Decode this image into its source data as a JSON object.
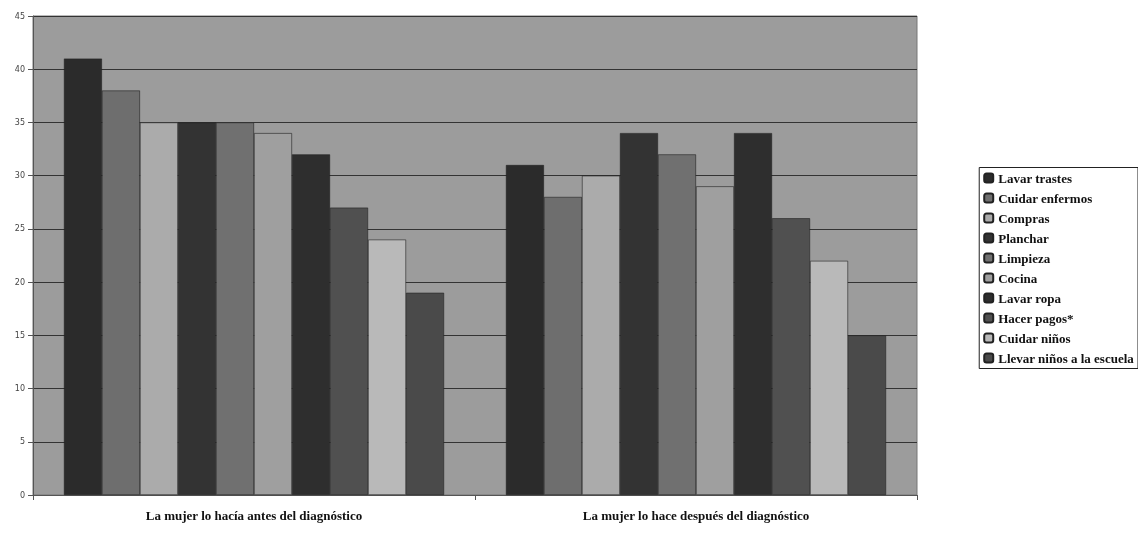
{
  "chart_data": {
    "type": "bar",
    "categories": [
      "La mujer lo hacía antes del diagnóstico",
      "La mujer lo hace después del diagnóstico"
    ],
    "series": [
      {
        "name": "Lavar trastes",
        "color": "#2b2b2b",
        "values": [
          41,
          31
        ]
      },
      {
        "name": "Cuidar enfermos",
        "color": "#6e6e6e",
        "values": [
          38,
          28
        ]
      },
      {
        "name": "Compras",
        "color": "#ababab",
        "values": [
          35,
          30
        ]
      },
      {
        "name": "Planchar",
        "color": "#333333",
        "values": [
          35,
          34
        ]
      },
      {
        "name": "Limpieza",
        "color": "#707070",
        "values": [
          35,
          32
        ]
      },
      {
        "name": "Cocina",
        "color": "#9f9f9f",
        "values": [
          34,
          29
        ]
      },
      {
        "name": "Lavar ropa",
        "color": "#2e2e2e",
        "values": [
          32,
          34
        ]
      },
      {
        "name": "Hacer pagos*",
        "color": "#505050",
        "values": [
          27,
          26
        ]
      },
      {
        "name": "Cuidar niños",
        "color": "#b9b9b9",
        "values": [
          24,
          22
        ]
      },
      {
        "name": "Llevar niños a la escuela",
        "color": "#4a4a4a",
        "values": [
          19,
          15
        ]
      }
    ],
    "ylim": [
      0,
      45
    ],
    "yticks": [
      0,
      5,
      10,
      15,
      20,
      25,
      30,
      35,
      40,
      45
    ],
    "grid": "y",
    "legend": "right"
  }
}
